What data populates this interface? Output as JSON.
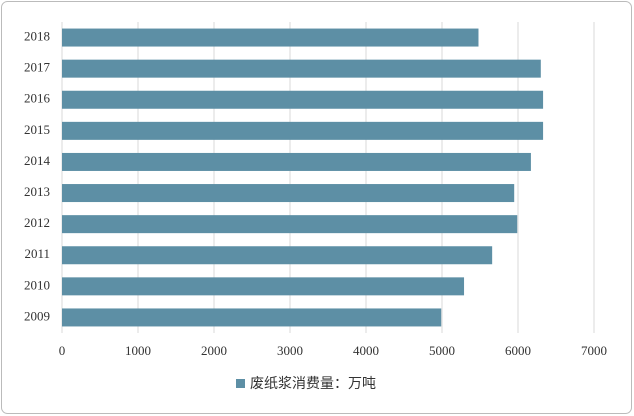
{
  "chart_data": {
    "type": "bar",
    "orientation": "horizontal",
    "categories": [
      "2018",
      "2017",
      "2016",
      "2015",
      "2014",
      "2013",
      "2012",
      "2011",
      "2010",
      "2009"
    ],
    "series": [
      {
        "name": "废纸浆消费量：万吨",
        "color": "#5d8fa5",
        "values": [
          5480,
          6300,
          6330,
          6330,
          6170,
          5950,
          5990,
          5660,
          5290,
          4990
        ]
      }
    ],
    "xlim": [
      0,
      7000
    ],
    "xticks": [
      0,
      1000,
      2000,
      3000,
      4000,
      5000,
      6000,
      7000
    ],
    "grid": true,
    "legend": "bottom"
  }
}
